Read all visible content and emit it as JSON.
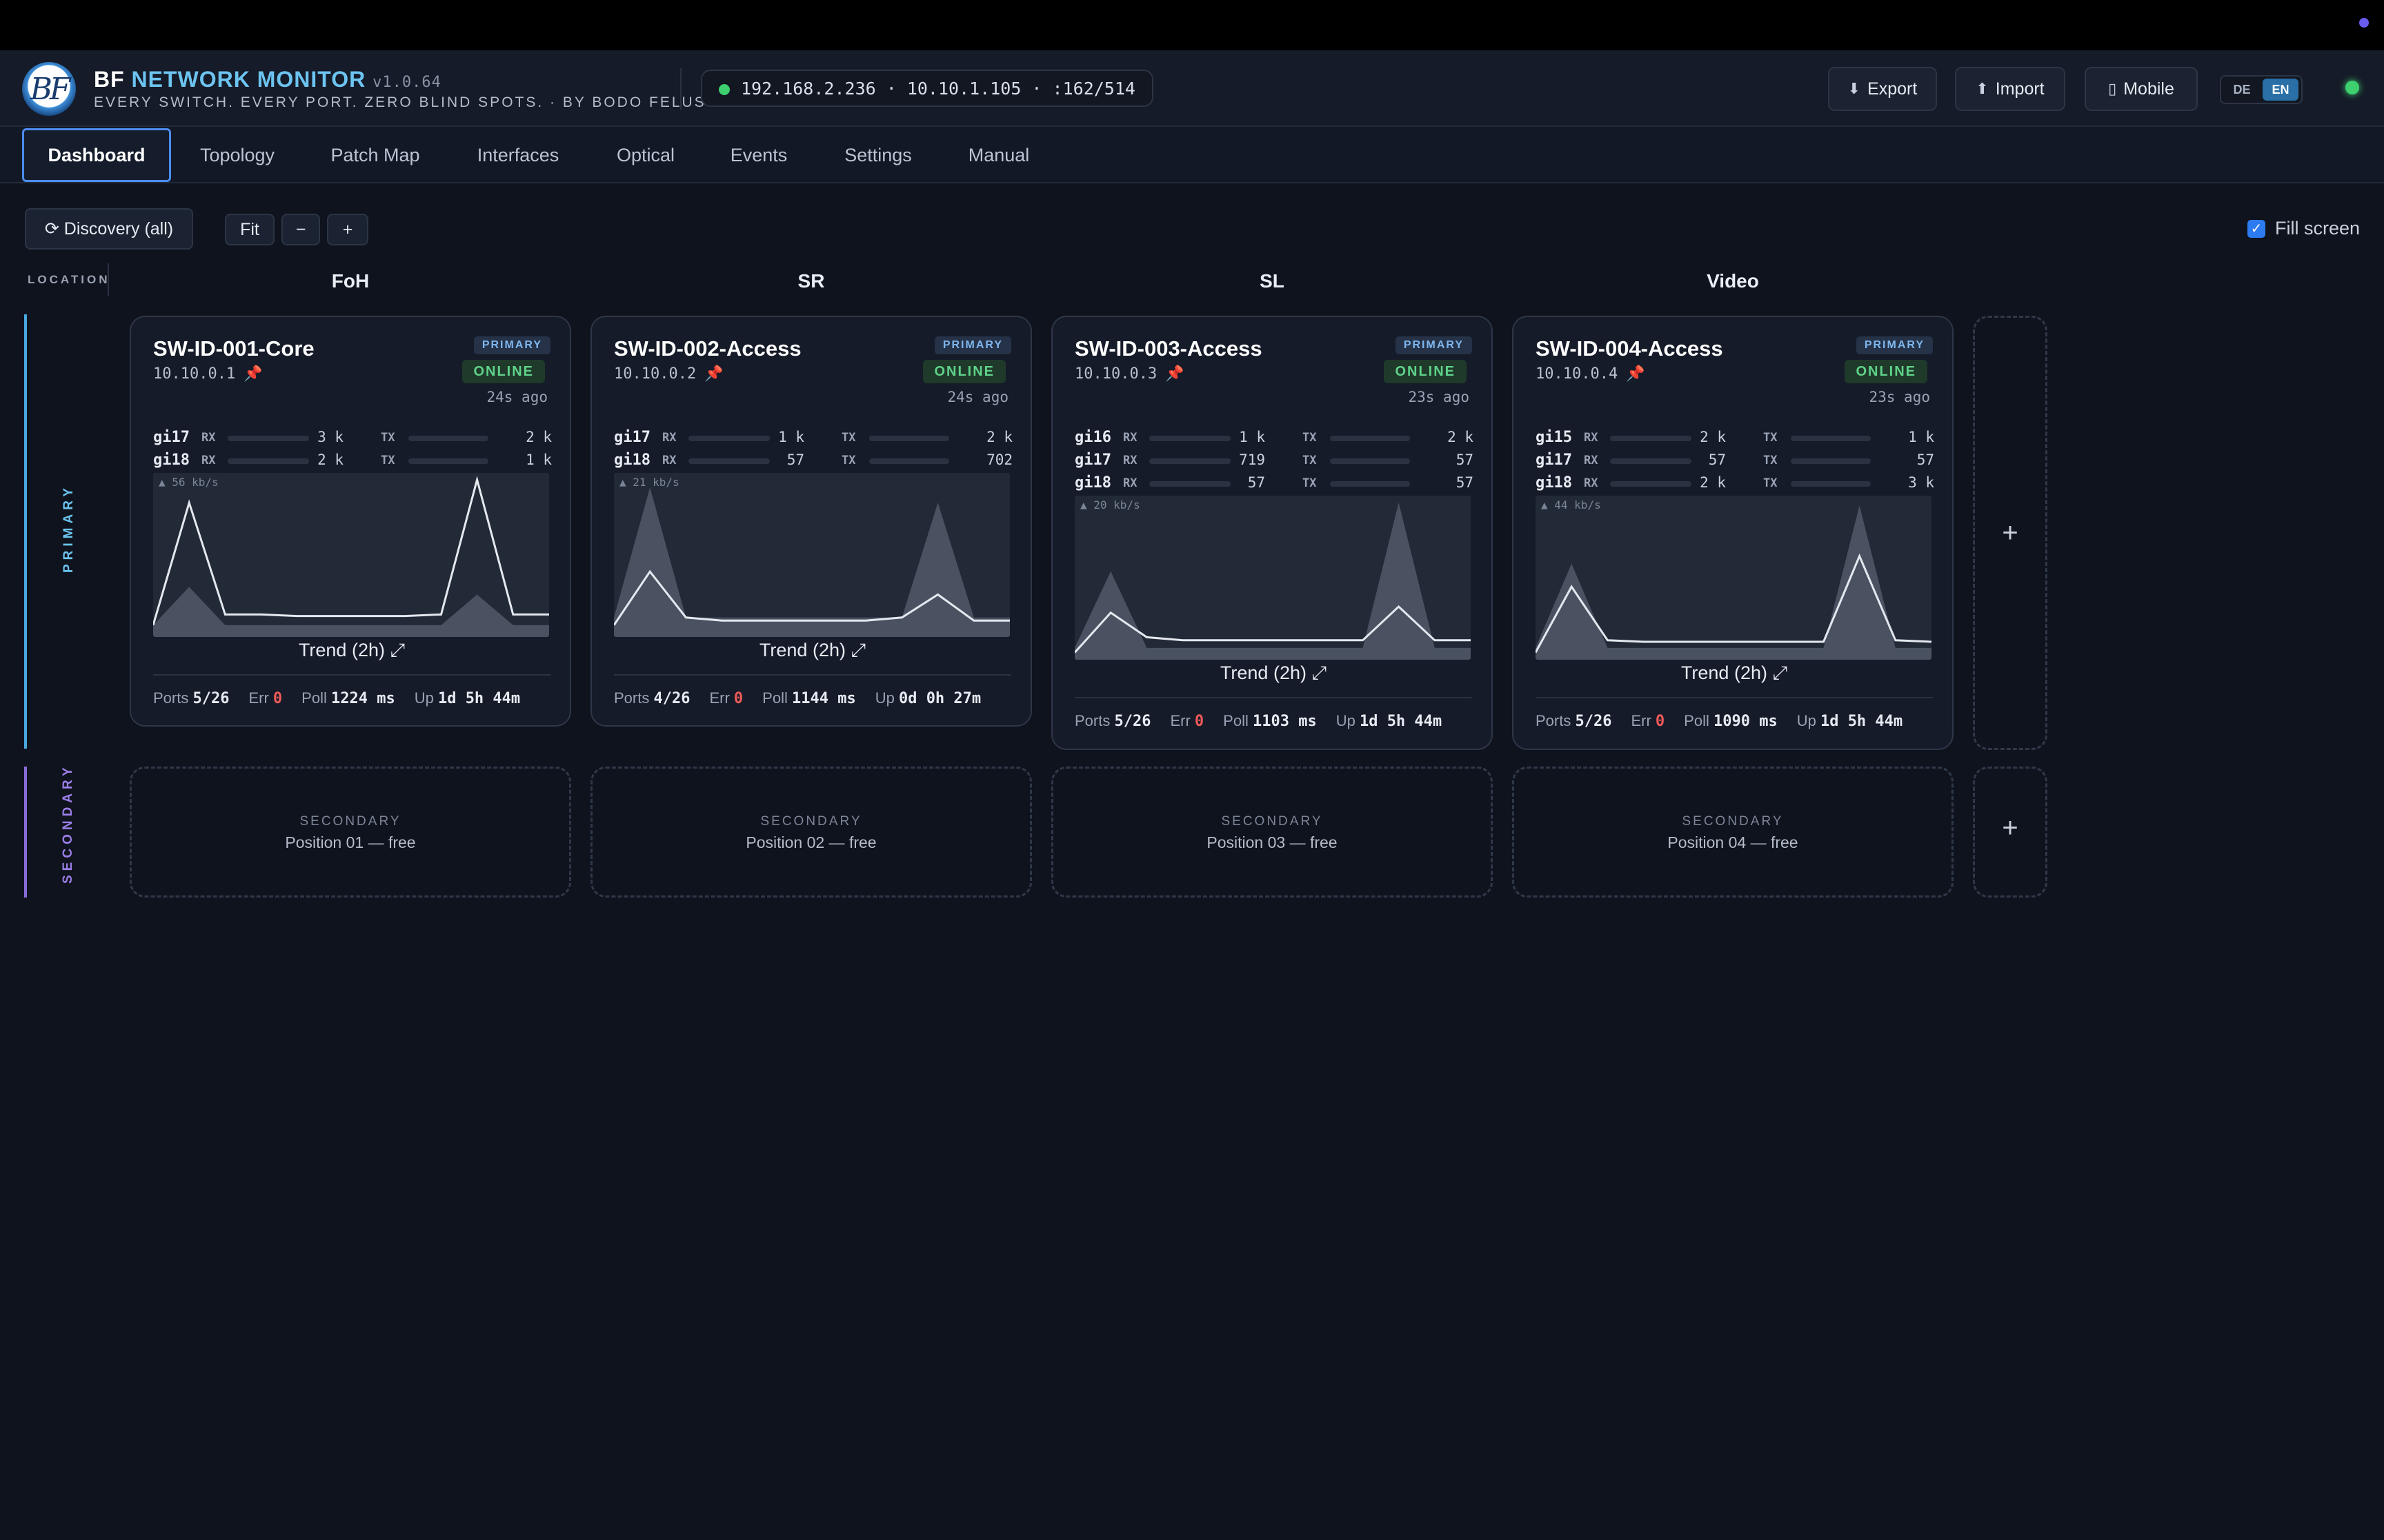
{
  "app": {
    "title_bold": "BF",
    "title_accent": "NETWORK MONITOR",
    "version": "v1.0.64",
    "tagline": "EVERY SWITCH. EVERY PORT. ZERO BLIND SPOTS. · BY BODO FELUSCH",
    "logo_text": "BF"
  },
  "endpoint": "192.168.2.236 · 10.10.1.105 · :162/514",
  "header_buttons": {
    "export": {
      "icon": "⬇",
      "label": "Export"
    },
    "import": {
      "icon": "⬆",
      "label": "Import"
    },
    "mobile": {
      "icon": "▯",
      "label": "Mobile"
    }
  },
  "lang": {
    "de": "DE",
    "en": "EN",
    "active": "EN"
  },
  "tabs": [
    "Dashboard",
    "Topology",
    "Patch Map",
    "Interfaces",
    "Optical",
    "Events",
    "Settings",
    "Manual"
  ],
  "toolbar": {
    "discovery": "⟳ Discovery (all)",
    "fit": "Fit",
    "zoom_out": "−",
    "zoom_in": "+",
    "fill_screen": "Fill screen",
    "fill_screen_checked": true
  },
  "location_label": "LOCATION",
  "locations": [
    "FoH",
    "SR",
    "SL",
    "Video"
  ],
  "rows": {
    "primary": "PRIMARY",
    "secondary": "SECONDARY"
  },
  "colors": {
    "primary_accent": "#4aa8e0",
    "secondary_accent": "#8a6cd8",
    "online": "#5fd38a",
    "error": "#f05a5a"
  },
  "switches": [
    {
      "name": "SW-ID-001-Core",
      "ip": "10.10.0.1",
      "role": "PRIMARY",
      "status": "ONLINE",
      "age": "24s ago",
      "ports": [
        {
          "name": "gi17",
          "rx_label": "RX",
          "rx": "3 k",
          "tx_label": "TX",
          "tx": "2 k"
        },
        {
          "name": "gi18",
          "rx_label": "RX",
          "rx": "2 k",
          "tx_label": "TX",
          "tx": "1 k"
        }
      ],
      "chart_max": "▲ 56 kb/s",
      "trend_area": [
        0.05,
        0.3,
        0.05,
        0.05,
        0.05,
        0.05,
        0.05,
        0.05,
        0.05,
        0.25,
        0.05,
        0.05
      ],
      "trend_line": [
        0.05,
        0.85,
        0.12,
        0.12,
        0.11,
        0.11,
        0.11,
        0.11,
        0.12,
        1.0,
        0.12,
        0.12
      ],
      "trend_label": "Trend (2h) ⤢",
      "footer": {
        "ports_label": "Ports",
        "ports": "5/26",
        "err_label": "Err",
        "err": "0",
        "poll_label": "Poll",
        "poll": "1224 ms",
        "up_label": "Up",
        "up": "1d 5h 44m"
      }
    },
    {
      "name": "SW-ID-002-Access",
      "ip": "10.10.0.2",
      "role": "PRIMARY",
      "status": "ONLINE",
      "age": "24s ago",
      "ports": [
        {
          "name": "gi17",
          "rx_label": "RX",
          "rx": "1 k",
          "tx_label": "TX",
          "tx": "2 k"
        },
        {
          "name": "gi18",
          "rx_label": "RX",
          "rx": "57",
          "tx_label": "TX",
          "tx": "702"
        }
      ],
      "chart_max": "▲ 21 kb/s",
      "trend_area": [
        0.1,
        0.95,
        0.1,
        0.1,
        0.1,
        0.1,
        0.1,
        0.1,
        0.1,
        0.85,
        0.1,
        0.1
      ],
      "trend_line": [
        0.05,
        0.4,
        0.1,
        0.08,
        0.08,
        0.08,
        0.08,
        0.08,
        0.1,
        0.25,
        0.08,
        0.08
      ],
      "trend_label": "Trend (2h) ⤢",
      "footer": {
        "ports_label": "Ports",
        "ports": "4/26",
        "err_label": "Err",
        "err": "0",
        "poll_label": "Poll",
        "poll": "1144 ms",
        "up_label": "Up",
        "up": "0d 0h 27m"
      }
    },
    {
      "name": "SW-ID-003-Access",
      "ip": "10.10.0.3",
      "role": "PRIMARY",
      "status": "ONLINE",
      "age": "23s ago",
      "ports": [
        {
          "name": "gi16",
          "rx_label": "RX",
          "rx": "1 k",
          "tx_label": "TX",
          "tx": "2 k"
        },
        {
          "name": "gi17",
          "rx_label": "RX",
          "rx": "719",
          "tx_label": "TX",
          "tx": "57"
        },
        {
          "name": "gi18",
          "rx_label": "RX",
          "rx": "57",
          "tx_label": "TX",
          "tx": "57"
        }
      ],
      "chart_max": "▲ 20 kb/s",
      "trend_area": [
        0.05,
        0.55,
        0.05,
        0.05,
        0.05,
        0.05,
        0.05,
        0.05,
        0.05,
        1.0,
        0.05,
        0.05
      ],
      "trend_line": [
        0.02,
        0.28,
        0.12,
        0.1,
        0.1,
        0.1,
        0.1,
        0.1,
        0.1,
        0.32,
        0.1,
        0.1
      ],
      "trend_label": "Trend (2h) ⤢",
      "footer": {
        "ports_label": "Ports",
        "ports": "5/26",
        "err_label": "Err",
        "err": "0",
        "poll_label": "Poll",
        "poll": "1103 ms",
        "up_label": "Up",
        "up": "1d 5h 44m"
      }
    },
    {
      "name": "SW-ID-004-Access",
      "ip": "10.10.0.4",
      "role": "PRIMARY",
      "status": "ONLINE",
      "age": "23s ago",
      "ports": [
        {
          "name": "gi15",
          "rx_label": "RX",
          "rx": "2 k",
          "tx_label": "TX",
          "tx": "1 k"
        },
        {
          "name": "gi17",
          "rx_label": "RX",
          "rx": "57",
          "tx_label": "TX",
          "tx": "57"
        },
        {
          "name": "gi18",
          "rx_label": "RX",
          "rx": "2 k",
          "tx_label": "TX",
          "tx": "3 k"
        }
      ],
      "chart_max": "▲ 44 kb/s",
      "trend_area": [
        0.05,
        0.6,
        0.05,
        0.05,
        0.05,
        0.05,
        0.05,
        0.05,
        0.05,
        0.98,
        0.05,
        0.05
      ],
      "trend_line": [
        0.02,
        0.45,
        0.1,
        0.09,
        0.09,
        0.09,
        0.09,
        0.09,
        0.09,
        0.65,
        0.1,
        0.09
      ],
      "trend_label": "Trend (2h) ⤢",
      "footer": {
        "ports_label": "Ports",
        "ports": "5/26",
        "err_label": "Err",
        "err": "0",
        "poll_label": "Poll",
        "poll": "1090 ms",
        "up_label": "Up",
        "up": "1d 5h 44m"
      }
    }
  ],
  "secondary_slots": [
    {
      "role": "SECONDARY",
      "label": "Position 01 — free"
    },
    {
      "role": "SECONDARY",
      "label": "Position 02 — free"
    },
    {
      "role": "SECONDARY",
      "label": "Position 03 — free"
    },
    {
      "role": "SECONDARY",
      "label": "Position 04 — free"
    }
  ],
  "add_symbol": "+"
}
